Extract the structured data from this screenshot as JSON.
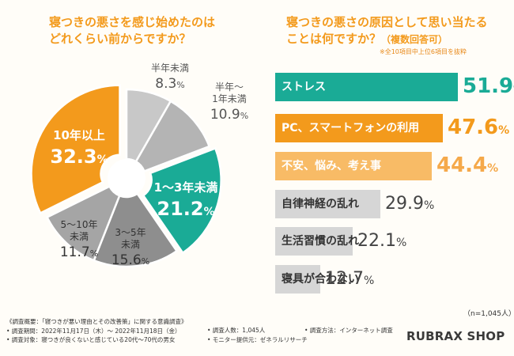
{
  "left_chart": {
    "title_line1": "寝つきの悪さを感じ始めたのは",
    "title_line2": "どれくらい前からですか？"
  },
  "right_chart": {
    "title_line1": "寝つきの悪さの原因として思い当たる",
    "title_line2": "ことは何ですか？",
    "title_sub": "（複数回答可）",
    "note": "※全10項目中上位6項目を抜粋",
    "n_note": "（n=1,045人）"
  },
  "chart_data": [
    {
      "type": "pie",
      "title": "寝つきの悪さを感じ始めたのはどれくらい前からですか？",
      "slices": [
        {
          "label": "半年未満",
          "value": 8.3,
          "display": "8.3",
          "color": "#c8c8c8"
        },
        {
          "label": "半年〜1年未満",
          "value": 10.9,
          "display": "10.9",
          "color": "#b4b4b4"
        },
        {
          "label": "1〜3年未満",
          "value": 21.2,
          "display": "21.2",
          "color": "#1aab96"
        },
        {
          "label": "3〜5年未満",
          "value": 15.6,
          "display": "15.6",
          "color": "#8e8e8e"
        },
        {
          "label": "5〜10年未満",
          "value": 11.7,
          "display": "11.7",
          "color": "#a5a5a5"
        },
        {
          "label": "10年以上",
          "value": 32.3,
          "display": "32.3",
          "color": "#f39a1c"
        }
      ],
      "unit": "%"
    },
    {
      "type": "bar",
      "title": "寝つきの悪さの原因として思い当たることは何ですか？（複数回答可）",
      "categories": [
        "ストレス",
        "PC、スマートフォンの利用",
        "不安、悩み、考え事",
        "自律神経の乱れ",
        "生活習慣の乱れ",
        "寝具が合わない"
      ],
      "values": [
        51.9,
        47.6,
        44.4,
        29.9,
        22.1,
        12.7
      ],
      "display": [
        "51.9",
        "47.6",
        "44.4",
        "29.9",
        "22.1",
        "12.7"
      ],
      "colors": [
        "#1aab96",
        "#f39a1c",
        "#f8bb66",
        "#d6d6d6",
        "#d6d6d6",
        "#d6d6d6"
      ],
      "value_colors": [
        "#1aab96",
        "#f39a1c",
        "#f5a94a",
        "#444444",
        "#444444",
        "#444444"
      ],
      "unit": "%",
      "xlim": [
        0,
        55
      ]
    }
  ],
  "survey": {
    "line1": "《調査概要：「寝つきが悪い理由とその改善策」に関する意識調査》",
    "period": "• 調査期間：2022年11月17日（木）〜 2022年11月18日（金）",
    "target": "• 調査対象：寝つきが良くないと感じている20代〜70代の男女",
    "count": "• 調査人数：1,045人",
    "monitor": "• モニター提供元：ゼネラルリサーチ",
    "method": "• 調査方法：インターネット調査"
  },
  "brand": "RUBRAX SHOP",
  "percent_symbol": "%"
}
